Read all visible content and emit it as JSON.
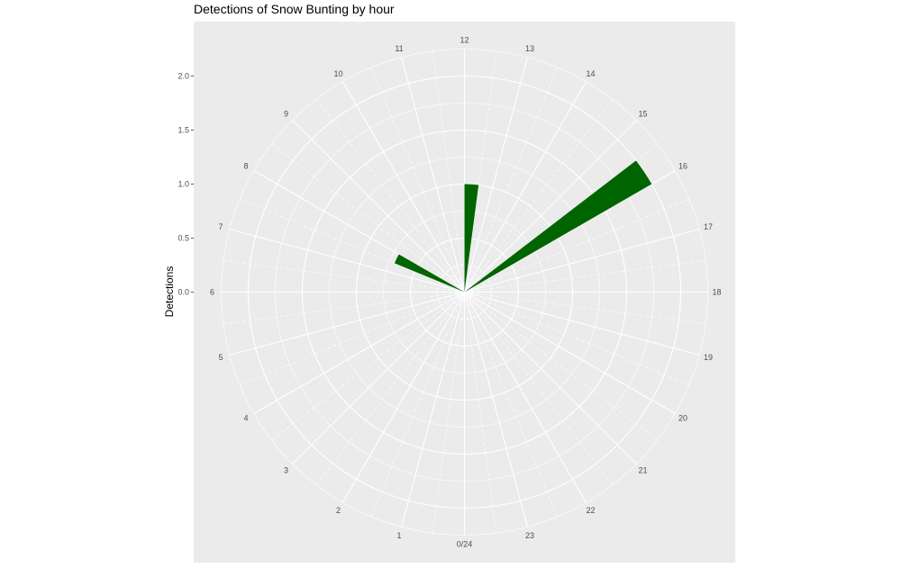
{
  "chart_data": {
    "type": "polar-bar",
    "title": "Detections of Snow Bunting by hour",
    "ylabel": "Detections",
    "xlabel": "",
    "hour_labels": [
      "0/24",
      "1",
      "2",
      "3",
      "4",
      "5",
      "6",
      "7",
      "8",
      "9",
      "10",
      "11",
      "12",
      "13",
      "14",
      "15",
      "16",
      "17",
      "18",
      "19",
      "20",
      "21",
      "22",
      "23"
    ],
    "y_ticks": [
      0.0,
      0.5,
      1.0,
      1.5,
      2.0
    ],
    "y_tick_labels": [
      "0.0",
      "0.5",
      "1.0",
      "1.5",
      "2.0"
    ],
    "ylim": [
      0,
      2.25
    ],
    "grid": true,
    "bar_color": "#006400",
    "panel_color": "#ebebeb",
    "bars": [
      {
        "start_hour": 7.5,
        "end_hour": 8.0,
        "value": 0.7
      },
      {
        "start_hour": 12.0,
        "end_hour": 12.5,
        "value": 1.0
      },
      {
        "start_hour": 15.5,
        "end_hour": 16.0,
        "value": 2.0
      }
    ]
  }
}
